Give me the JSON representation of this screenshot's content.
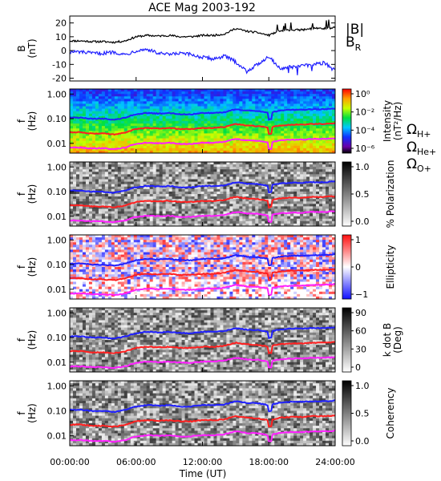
{
  "title": "ACE Mag 2003-192",
  "xaxis": {
    "label": "Time (UT)",
    "ticks": [
      "00:00:00",
      "06:00:00",
      "12:00:00",
      "18:00:00",
      "24:00:00"
    ],
    "range_hours": [
      0,
      24
    ]
  },
  "legend_b": [
    {
      "text": "|B|",
      "color": "#000000"
    },
    {
      "text": "B",
      "sub": "R",
      "color": "#2020ff"
    }
  ],
  "legend_gyro": [
    {
      "text": "Ω",
      "sub": "H+",
      "color": "#2020ff"
    },
    {
      "text": "Ω",
      "sub": "He+",
      "color": "#ff2020"
    },
    {
      "text": "Ω",
      "sub": "O+",
      "color": "#ff20ff"
    }
  ],
  "colors": {
    "B": "#000000",
    "BR": "#2020ff",
    "H": "#2020ff",
    "He": "#ff2020",
    "O": "#ff20ff"
  },
  "chart_data": [
    {
      "type": "line",
      "ylabel": "B",
      "yunit": "(nT)",
      "ylim": [
        -22,
        25
      ],
      "yticks": [
        "20",
        "10",
        "0",
        "-10",
        "-20"
      ],
      "ytick_values": [
        20,
        10,
        0,
        -10,
        -20
      ],
      "x_hours": [
        0,
        1,
        2,
        3,
        4,
        5,
        6,
        7,
        8,
        9,
        10,
        11,
        12,
        13,
        14,
        15,
        16,
        17,
        18,
        19,
        20,
        21,
        22,
        23,
        24
      ],
      "series": [
        {
          "name": "|B|",
          "values": [
            7,
            7,
            6.5,
            6.5,
            6,
            7,
            10,
            11,
            10.5,
            11,
            10,
            10,
            11,
            11,
            12,
            16,
            14,
            13,
            11,
            14,
            15,
            15,
            16,
            16,
            17
          ]
        },
        {
          "name": "B_R",
          "values": [
            -1,
            -1,
            -2,
            -2,
            -1,
            -3,
            0,
            1,
            -2,
            -3,
            -2,
            -3,
            -5,
            -6,
            -4,
            -8,
            -15,
            -10,
            -4,
            -13,
            -12,
            -11,
            -10,
            -9,
            -14
          ]
        }
      ]
    },
    {
      "type": "heatmap",
      "ylabel": "f",
      "yunit": "(Hz)",
      "yticks": [
        "1.00",
        "0.10",
        "0.01"
      ],
      "colorbar": {
        "label": "Intensity",
        "unit": "(nT²/Hz)",
        "ticks": [
          "10⁰",
          "10⁻²",
          "10⁻⁴",
          "10⁻⁶"
        ],
        "scale": "rainbow"
      },
      "overlay_freq_hz": {
        "H": [
          0.11,
          0.11,
          0.1,
          0.1,
          0.09,
          0.11,
          0.15,
          0.17,
          0.16,
          0.17,
          0.15,
          0.15,
          0.17,
          0.17,
          0.18,
          0.24,
          0.21,
          0.2,
          0.17,
          0.21,
          0.23,
          0.23,
          0.24,
          0.24,
          0.26
        ],
        "He": [
          0.028,
          0.028,
          0.025,
          0.025,
          0.023,
          0.027,
          0.038,
          0.042,
          0.04,
          0.042,
          0.038,
          0.038,
          0.042,
          0.042,
          0.046,
          0.061,
          0.053,
          0.05,
          0.042,
          0.053,
          0.057,
          0.057,
          0.061,
          0.061,
          0.065
        ],
        "O": [
          0.0067,
          0.0067,
          0.0063,
          0.0063,
          0.0058,
          0.0067,
          0.0095,
          0.0105,
          0.01,
          0.0105,
          0.0095,
          0.0095,
          0.0105,
          0.0105,
          0.0115,
          0.015,
          0.013,
          0.0125,
          0.0105,
          0.013,
          0.014,
          0.014,
          0.015,
          0.015,
          0.016
        ]
      }
    },
    {
      "type": "heatmap",
      "ylabel": "f",
      "yunit": "(Hz)",
      "yticks": [
        "1.00",
        "0.10",
        "0.01"
      ],
      "colorbar": {
        "label": "% Polarization",
        "unit": "",
        "ticks": [
          "1.0",
          "0.5",
          "0.0"
        ],
        "scale": "gray"
      }
    },
    {
      "type": "heatmap",
      "ylabel": "f",
      "yunit": "(Hz)",
      "yticks": [
        "1.00",
        "0.10",
        "0.01"
      ],
      "colorbar": {
        "label": "Ellipticity",
        "unit": "",
        "ticks": [
          "1",
          "0",
          "−1"
        ],
        "scale": "bwr"
      }
    },
    {
      "type": "heatmap",
      "ylabel": "f",
      "yunit": "(Hz)",
      "yticks": [
        "1.00",
        "0.10",
        "0.01"
      ],
      "colorbar": {
        "label": "k dot B",
        "unit": "(Deg)",
        "ticks": [
          "90",
          "60",
          "30",
          "0"
        ],
        "scale": "gray"
      }
    },
    {
      "type": "heatmap",
      "ylabel": "f",
      "yunit": "(Hz)",
      "yticks": [
        "1.00",
        "0.10",
        "0.01"
      ],
      "colorbar": {
        "label": "Coherency",
        "unit": "",
        "ticks": [
          "1.0",
          "0.5",
          "0.0"
        ],
        "scale": "gray"
      }
    }
  ]
}
